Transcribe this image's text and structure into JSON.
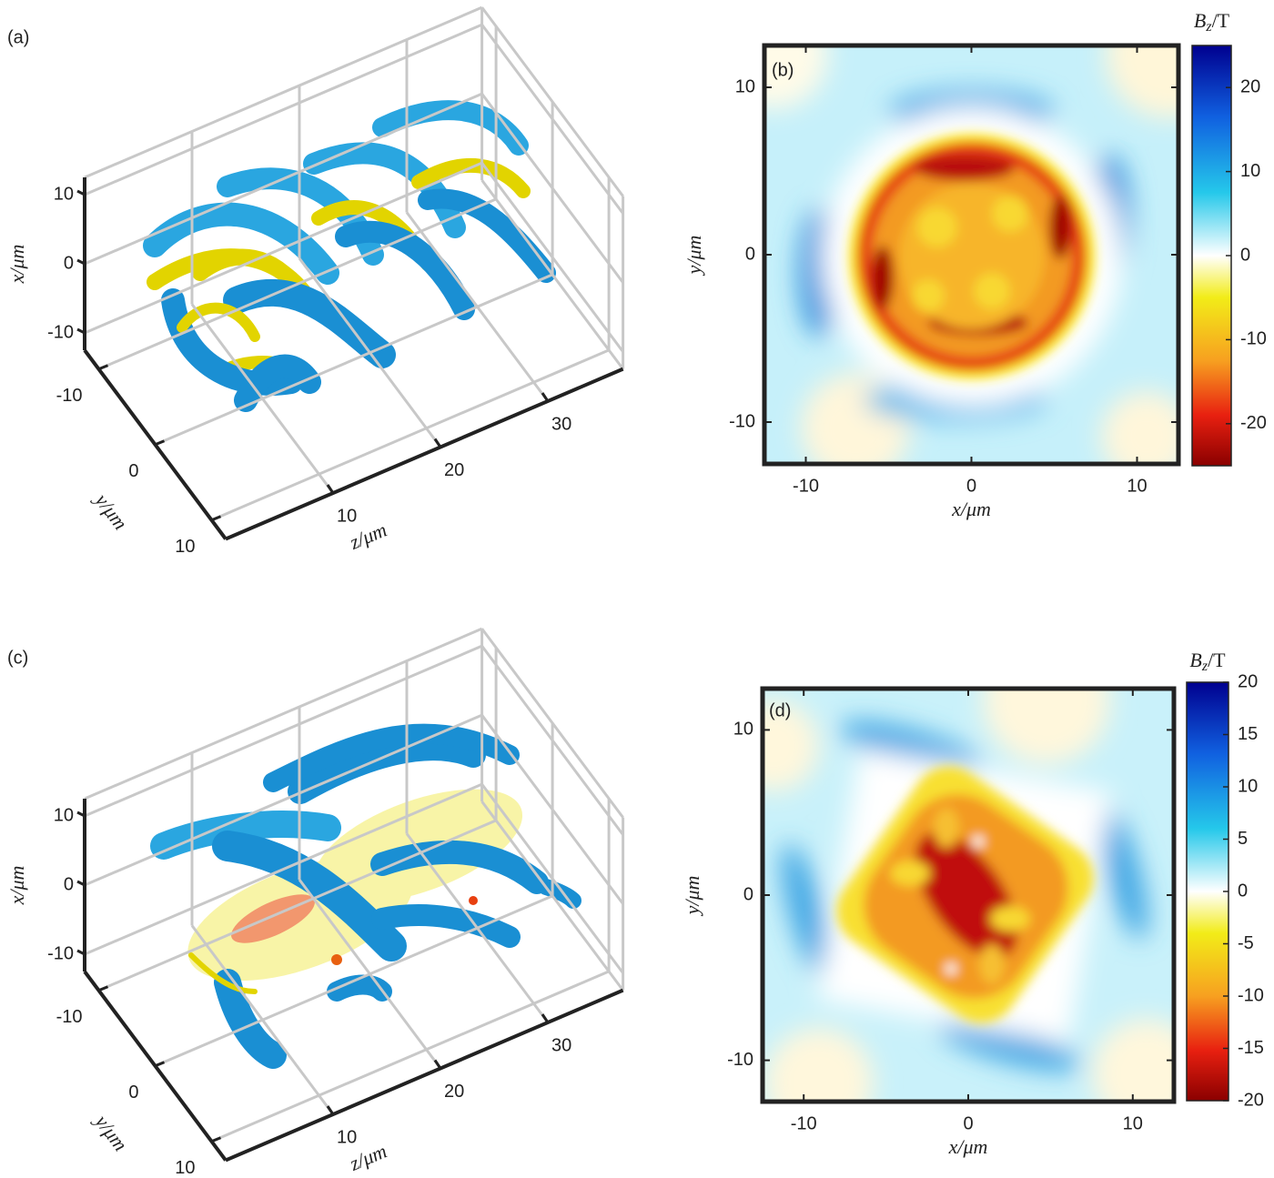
{
  "chart_data": [
    {
      "type": "isosurface3d",
      "panel_label": "(a)",
      "xlabel": "x/μm",
      "ylabel": "y/μm",
      "zlabel": "z/μm",
      "xlim": [
        -12.5,
        12.5
      ],
      "ylim": [
        -12.5,
        12.5
      ],
      "zlim": [
        0,
        37
      ],
      "xticks": [
        -10,
        0,
        10
      ],
      "yticks": [
        -10,
        0,
        10
      ],
      "zticks": [
        10,
        20,
        30
      ],
      "grid": true
    },
    {
      "type": "heatmap",
      "panel_label": "(b)",
      "xlabel": "x/μm",
      "ylabel": "y/μm",
      "xlim": [
        -12.5,
        12.5
      ],
      "ylim": [
        -12.5,
        12.5
      ],
      "xticks": [
        -10,
        0,
        10
      ],
      "yticks": [
        -10,
        0,
        10
      ],
      "colorbar": {
        "symbol": "B",
        "subscript": "z",
        "unit": "/T",
        "lim": [
          -25,
          25
        ],
        "ticks": [
          -20,
          -10,
          0,
          10,
          20
        ]
      }
    },
    {
      "type": "isosurface3d",
      "panel_label": "(c)",
      "xlabel": "x/μm",
      "ylabel": "y/μm",
      "zlabel": "z/μm",
      "xlim": [
        -12.5,
        12.5
      ],
      "ylim": [
        -12.5,
        12.5
      ],
      "zlim": [
        0,
        37
      ],
      "xticks": [
        -10,
        0,
        10
      ],
      "yticks": [
        -10,
        0,
        10
      ],
      "zticks": [
        10,
        20,
        30
      ],
      "grid": true
    },
    {
      "type": "heatmap",
      "panel_label": "(d)",
      "xlabel": "x/μm",
      "ylabel": "y/μm",
      "xlim": [
        -12.5,
        12.5
      ],
      "ylim": [
        -12.5,
        12.5
      ],
      "xticks": [
        -10,
        0,
        10
      ],
      "yticks": [
        -10,
        0,
        10
      ],
      "colorbar": {
        "symbol": "B",
        "subscript": "z",
        "unit": "/T",
        "lim": [
          -20,
          20
        ],
        "ticks": [
          -20,
          -15,
          -10,
          -5,
          0,
          5,
          10,
          15,
          20
        ]
      }
    }
  ]
}
